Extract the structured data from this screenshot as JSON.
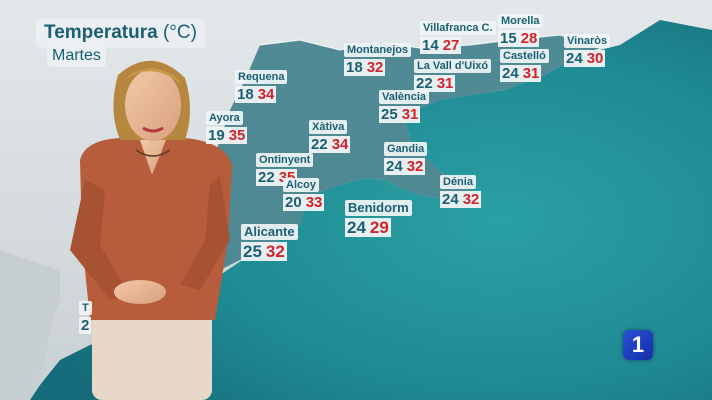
{
  "header": {
    "title": "Temperatura",
    "unit": "(°C)",
    "day": "Martes"
  },
  "cities": [
    {
      "name": "Villafranca C.",
      "min": "14",
      "max": "27"
    },
    {
      "name": "Morella",
      "min": "15",
      "max": "28"
    },
    {
      "name": "Vinaròs",
      "min": "24",
      "max": "30"
    },
    {
      "name": "Montanejos",
      "min": "18",
      "max": "32"
    },
    {
      "name": "Castelló",
      "min": "24",
      "max": "31"
    },
    {
      "name": "La Vall d'Uixó",
      "min": "22",
      "max": "31"
    },
    {
      "name": "Requena",
      "min": "18",
      "max": "34"
    },
    {
      "name": "València",
      "min": "25",
      "max": "31"
    },
    {
      "name": "Ayora",
      "min": "19",
      "max": "35"
    },
    {
      "name": "Xàtiva",
      "min": "22",
      "max": "34"
    },
    {
      "name": "Gandia",
      "min": "24",
      "max": "32"
    },
    {
      "name": "Ontinyent",
      "min": "22",
      "max": "35"
    },
    {
      "name": "Alcoy",
      "min": "20",
      "max": "33"
    },
    {
      "name": "Dénia",
      "min": "24",
      "max": "32"
    },
    {
      "name": "Benidorm",
      "min": "24",
      "max": "29"
    },
    {
      "name": "Alicante",
      "min": "25",
      "max": "32"
    }
  ],
  "partial_labels": {
    "left_name": "T",
    "left_min": "2"
  },
  "channel_logo": {
    "text": "1"
  },
  "colors": {
    "sea": "#1f8a93",
    "land": "#d9dee1",
    "region": "#3f7f8c",
    "min_text": "#1b5f74",
    "max_text": "#d3232a",
    "presenter_top": "#b75d3c"
  }
}
